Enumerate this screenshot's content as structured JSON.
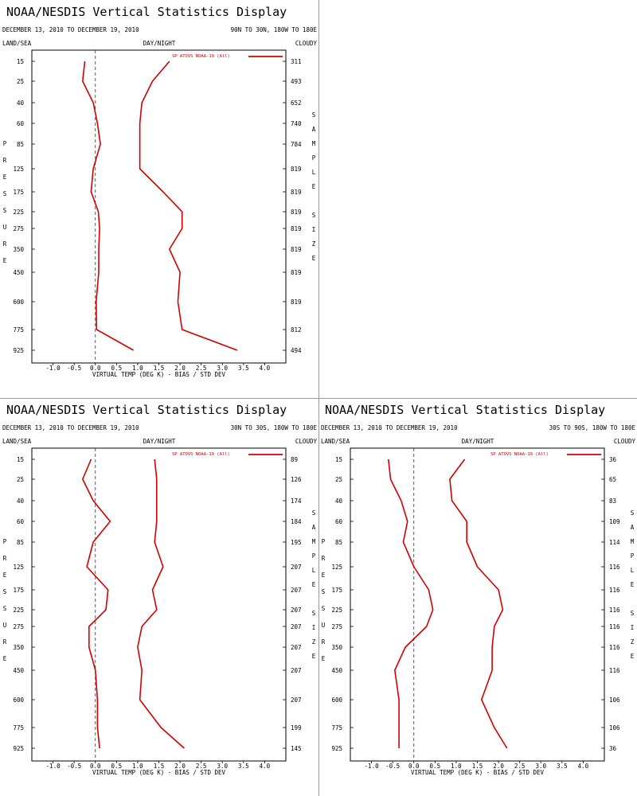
{
  "header": {
    "title": "NOAA/NESDIS Vertical Statistics Display",
    "date_range": "DECEMBER 13, 2010 TO DECEMBER 19, 2010",
    "land_sea": "LAND/SEA",
    "day_night": "DAY/NIGHT",
    "cloudy": "CLOUDY",
    "pressure_label": "PRESSURE",
    "sample_size_label": "SAMPLE SIZE",
    "xlabel": "VIRTUAL TEMP (DEG K) - BIAS / STD DEV",
    "legend": "SP ATOVS NOAA-19 (All)",
    "line_color": "#d40000"
  },
  "panels": [
    {
      "id": "panel-1",
      "region": "90N TO 30N, 180W TO 180E",
      "sample_sizes": [
        "311",
        "493",
        "652",
        "740",
        "784",
        "819",
        "819",
        "819",
        "819",
        "819",
        "819",
        "819",
        "812",
        "494"
      ]
    },
    {
      "id": "panel-2",
      "region": "30N TO 30S, 180W TO 180E",
      "sample_sizes": [
        "89",
        "126",
        "174",
        "184",
        "195",
        "207",
        "207",
        "207",
        "207",
        "207",
        "207",
        "207",
        "199",
        "145"
      ]
    },
    {
      "id": "panel-3",
      "region": "30S TO 90S, 180W TO 180E",
      "sample_sizes": [
        "36",
        "65",
        "83",
        "109",
        "114",
        "116",
        "116",
        "116",
        "116",
        "116",
        "116",
        "106",
        "106",
        "36"
      ]
    }
  ],
  "chart_data": [
    {
      "type": "line",
      "title": "NOAA/NESDIS Vertical Statistics Display",
      "xlabel": "VIRTUAL TEMP (DEG K) - BIAS / STD DEV",
      "ylabel": "PRESSURE",
      "xlim": [
        -1.5,
        4.5
      ],
      "x_ticks": [
        "-1.0",
        "-0.5",
        "0.0",
        "0.5",
        "1.0",
        "1.5",
        "2.0",
        "2.5",
        "3.0",
        "3.5",
        "4.0"
      ],
      "pressure_levels": [
        "15",
        "25",
        "40",
        "60",
        "85",
        "125",
        "175",
        "225",
        "275",
        "350",
        "450",
        "600",
        "775",
        "925"
      ],
      "series": [
        {
          "name": "BIAS",
          "values": [
            -0.25,
            -0.3,
            -0.05,
            0.05,
            0.12,
            -0.05,
            -0.1,
            0.07,
            0.1,
            0.08,
            0.08,
            0.02,
            0.03,
            0.9
          ]
        },
        {
          "name": "STD DEV",
          "values": [
            1.75,
            1.35,
            1.1,
            1.05,
            1.05,
            1.05,
            1.6,
            2.05,
            2.05,
            1.75,
            2.0,
            1.95,
            2.05,
            3.35
          ]
        }
      ]
    },
    {
      "type": "line",
      "title": "NOAA/NESDIS Vertical Statistics Display",
      "xlabel": "VIRTUAL TEMP (DEG K) - BIAS / STD DEV",
      "ylabel": "PRESSURE",
      "xlim": [
        -1.5,
        4.5
      ],
      "x_ticks": [
        "-1.0",
        "-0.5",
        "0.0",
        "0.5",
        "1.0",
        "1.5",
        "2.0",
        "2.5",
        "3.0",
        "3.5",
        "4.0"
      ],
      "pressure_levels": [
        "15",
        "25",
        "40",
        "60",
        "85",
        "125",
        "175",
        "225",
        "275",
        "350",
        "450",
        "600",
        "775",
        "925"
      ],
      "series": [
        {
          "name": "BIAS",
          "values": [
            -0.1,
            -0.3,
            -0.05,
            0.35,
            -0.05,
            -0.2,
            0.3,
            0.25,
            -0.15,
            -0.15,
            0.0,
            0.05,
            0.05,
            0.1
          ]
        },
        {
          "name": "STD DEV",
          "values": [
            1.4,
            1.45,
            1.45,
            1.45,
            1.4,
            1.6,
            1.35,
            1.45,
            1.1,
            1.0,
            1.1,
            1.05,
            1.55,
            2.1
          ]
        }
      ]
    },
    {
      "type": "line",
      "title": "NOAA/NESDIS Vertical Statistics Display",
      "xlabel": "VIRTUAL TEMP (DEG K) - BIAS / STD DEV",
      "ylabel": "PRESSURE",
      "xlim": [
        -1.5,
        4.5
      ],
      "x_ticks": [
        "-1.0",
        "-0.5",
        "0.0",
        "0.5",
        "1.0",
        "1.5",
        "2.0",
        "2.5",
        "3.0",
        "3.5",
        "4.0"
      ],
      "pressure_levels": [
        "15",
        "25",
        "40",
        "60",
        "85",
        "125",
        "175",
        "225",
        "275",
        "350",
        "450",
        "600",
        "775",
        "925"
      ],
      "series": [
        {
          "name": "BIAS",
          "values": [
            -0.6,
            -0.55,
            -0.3,
            -0.15,
            -0.25,
            0.0,
            0.35,
            0.45,
            0.3,
            -0.2,
            -0.45,
            -0.35,
            -0.35,
            -0.35
          ]
        },
        {
          "name": "STD DEV",
          "values": [
            1.2,
            0.85,
            0.9,
            1.25,
            1.25,
            1.5,
            2.0,
            2.1,
            1.9,
            1.85,
            1.85,
            1.6,
            1.9,
            2.2
          ]
        }
      ]
    }
  ]
}
